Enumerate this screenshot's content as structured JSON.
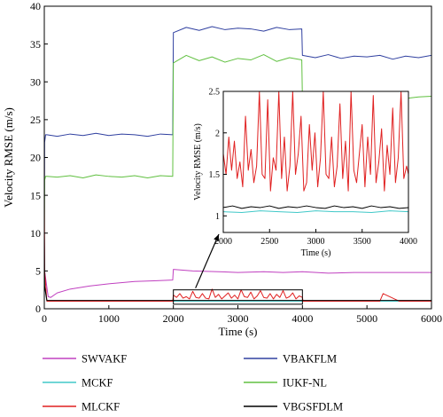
{
  "chart_data": [
    {
      "type": "line",
      "xlabel": "Time (s)",
      "ylabel": "Velocity RMSE (m/s)",
      "xlim": [
        0,
        6000
      ],
      "ylim": [
        0,
        40
      ],
      "xticks": [
        0,
        1000,
        2000,
        3000,
        4000,
        5000,
        6000
      ],
      "yticks": [
        0,
        5,
        10,
        15,
        20,
        25,
        30,
        35,
        40
      ],
      "grid": false,
      "legend_position": "bottom",
      "series": [
        {
          "name": "SWVAKF",
          "color": "#c040c0",
          "x": [
            0,
            5,
            60,
            100,
            200,
            400,
            700,
            1000,
            1400,
            1700,
            1990,
            2000,
            2300,
            2700,
            3000,
            3400,
            3700,
            4000,
            4400,
            4800,
            5200,
            5600,
            6000
          ],
          "y": [
            10,
            5,
            1.6,
            1.5,
            2.1,
            2.6,
            3.0,
            3.3,
            3.6,
            3.7,
            3.8,
            5.2,
            5.0,
            4.9,
            4.8,
            4.9,
            4.8,
            4.9,
            4.7,
            4.8,
            4.8,
            4.8,
            4.8
          ]
        },
        {
          "name": "MCKF",
          "color": "#40c8c8",
          "x": [
            0,
            5,
            40,
            500,
            1000,
            2000,
            3000,
            4000,
            5000,
            6000
          ],
          "y": [
            10,
            3,
            1.0,
            1.0,
            1.0,
            1.0,
            1.0,
            1.0,
            1.0,
            1.0
          ]
        },
        {
          "name": "MLCKF",
          "color": "#e02020",
          "x": [
            0,
            5,
            40,
            500,
            1000,
            1990,
            2000,
            2050,
            2100,
            2150,
            2200,
            2250,
            2300,
            2350,
            2400,
            2450,
            2500,
            2550,
            2600,
            2650,
            2700,
            2750,
            2800,
            2850,
            2900,
            2950,
            3000,
            3050,
            3100,
            3150,
            3200,
            3250,
            3300,
            3350,
            3400,
            3450,
            3500,
            3550,
            3600,
            3650,
            3700,
            3750,
            3800,
            3850,
            3900,
            3950,
            4000,
            4010,
            4500,
            5000,
            5200,
            5250,
            5500,
            6000
          ],
          "y": [
            22,
            5,
            1.0,
            1.0,
            1.0,
            1.0,
            1.8,
            1.5,
            2.0,
            1.4,
            1.6,
            1.3,
            2.3,
            1.5,
            1.4,
            2.0,
            1.4,
            1.3,
            2.6,
            1.5,
            1.9,
            1.3,
            1.7,
            2.1,
            1.4,
            1.8,
            1.3,
            2.5,
            1.6,
            1.5,
            2.2,
            1.3,
            1.7,
            2.4,
            1.5,
            1.4,
            2.0,
            1.3,
            1.9,
            1.5,
            2.4,
            1.4,
            1.6,
            2.1,
            1.3,
            1.7,
            1.5,
            1.0,
            1.0,
            1.0,
            1.0,
            2.0,
            1.0,
            1.0
          ]
        },
        {
          "name": "VBAKFLM",
          "color": "#3040a0",
          "x": [
            0,
            5,
            20,
            40,
            200,
            400,
            600,
            800,
            1000,
            1200,
            1400,
            1600,
            1800,
            1990,
            2000,
            2200,
            2400,
            2600,
            2800,
            3000,
            3200,
            3400,
            3600,
            3800,
            3990,
            4000,
            4200,
            4400,
            4600,
            4800,
            5000,
            5200,
            5400,
            5600,
            5800,
            6000
          ],
          "y": [
            10,
            22,
            23,
            23,
            22.8,
            23.1,
            22.9,
            23.2,
            22.9,
            23.1,
            23.0,
            22.8,
            23.1,
            23.0,
            36.5,
            37.2,
            36.8,
            37.3,
            36.9,
            37.1,
            37.0,
            36.7,
            37.2,
            36.9,
            37.0,
            33.5,
            33.2,
            33.6,
            33.1,
            33.4,
            33.3,
            33.5,
            33.0,
            33.4,
            33.2,
            33.5
          ]
        },
        {
          "name": "IUKF-NL",
          "color": "#60c040",
          "x": [
            0,
            5,
            20,
            40,
            200,
            400,
            600,
            800,
            1000,
            1200,
            1400,
            1600,
            1800,
            1990,
            2000,
            2200,
            2400,
            2600,
            2800,
            3000,
            3200,
            3400,
            3600,
            3800,
            3990,
            4000,
            4200,
            4400,
            4600,
            4800,
            5000,
            5200,
            5400,
            5600,
            5800,
            6000
          ],
          "y": [
            10,
            17,
            17.5,
            17.5,
            17.4,
            17.6,
            17.3,
            17.7,
            17.5,
            17.4,
            17.6,
            17.3,
            17.6,
            17.5,
            32.5,
            33.5,
            32.8,
            33.3,
            32.6,
            33.1,
            32.9,
            33.6,
            32.7,
            33.2,
            32.9,
            27.8,
            28.0,
            27.6,
            28.3,
            27.9,
            28.1,
            27.7,
            28.2,
            27.8,
            28.0,
            28.1
          ]
        },
        {
          "name": "VBGSFDLM",
          "color": "#000000",
          "x": [
            0,
            5,
            40,
            1000,
            2000,
            3000,
            4000,
            5000,
            6000
          ],
          "y": [
            10,
            3,
            1.1,
            1.1,
            1.1,
            1.1,
            1.1,
            1.1,
            1.1
          ]
        }
      ]
    },
    {
      "type": "line",
      "xlabel": "Time (s)",
      "ylabel": "Velocity RMSE (m/s)",
      "xlim": [
        2000,
        4000
      ],
      "ylim": [
        0.8,
        2.5
      ],
      "xticks": [
        2000,
        2500,
        3000,
        3500,
        4000
      ],
      "yticks": [
        1,
        1.5,
        2,
        2.5
      ],
      "series": [
        {
          "name": "MLCKF",
          "color": "#e02020",
          "x": [
            2000,
            2030,
            2060,
            2090,
            2120,
            2150,
            2180,
            2210,
            2240,
            2270,
            2300,
            2330,
            2360,
            2390,
            2420,
            2450,
            2480,
            2510,
            2540,
            2570,
            2600,
            2630,
            2660,
            2690,
            2720,
            2750,
            2780,
            2810,
            2840,
            2870,
            2900,
            2930,
            2960,
            2990,
            3020,
            3050,
            3080,
            3110,
            3140,
            3170,
            3200,
            3230,
            3260,
            3290,
            3320,
            3350,
            3380,
            3410,
            3440,
            3470,
            3500,
            3530,
            3560,
            3590,
            3620,
            3650,
            3680,
            3710,
            3740,
            3770,
            3800,
            3830,
            3860,
            3890,
            3920,
            3950,
            3980,
            4000
          ],
          "y": [
            1.75,
            1.5,
            1.95,
            1.55,
            1.9,
            1.45,
            1.65,
            1.35,
            2.2,
            1.55,
            1.8,
            1.4,
            1.6,
            2.5,
            1.5,
            1.45,
            2.4,
            1.3,
            1.7,
            1.55,
            2.5,
            1.45,
            1.95,
            1.3,
            1.6,
            2.5,
            1.5,
            1.75,
            2.2,
            1.3,
            1.4,
            2.1,
            1.55,
            2.0,
            1.35,
            1.7,
            2.5,
            1.5,
            1.45,
            1.95,
            1.35,
            1.6,
            2.35,
            1.45,
            1.9,
            1.3,
            2.5,
            1.55,
            1.4,
            1.75,
            2.1,
            1.35,
            1.95,
            1.5,
            2.45,
            1.4,
            1.65,
            2.05,
            1.3,
            1.85,
            1.5,
            2.3,
            1.4,
            1.7,
            2.5,
            1.45,
            1.6,
            1.5
          ]
        },
        {
          "name": "MCKF",
          "color": "#40c8c8",
          "x": [
            2000,
            2200,
            2400,
            2600,
            2800,
            3000,
            3200,
            3400,
            3600,
            3800,
            4000
          ],
          "y": [
            1.05,
            1.04,
            1.06,
            1.05,
            1.04,
            1.06,
            1.05,
            1.05,
            1.04,
            1.06,
            1.05
          ]
        },
        {
          "name": "VBGSFDLM",
          "color": "#000000",
          "x": [
            2000,
            2100,
            2200,
            2300,
            2400,
            2500,
            2600,
            2700,
            2800,
            2900,
            3000,
            3100,
            3200,
            3300,
            3400,
            3500,
            3600,
            3700,
            3800,
            3900,
            4000
          ],
          "y": [
            1.1,
            1.12,
            1.09,
            1.11,
            1.1,
            1.12,
            1.09,
            1.11,
            1.1,
            1.12,
            1.1,
            1.09,
            1.12,
            1.1,
            1.11,
            1.09,
            1.12,
            1.1,
            1.11,
            1.09,
            1.1
          ]
        }
      ]
    }
  ]
}
